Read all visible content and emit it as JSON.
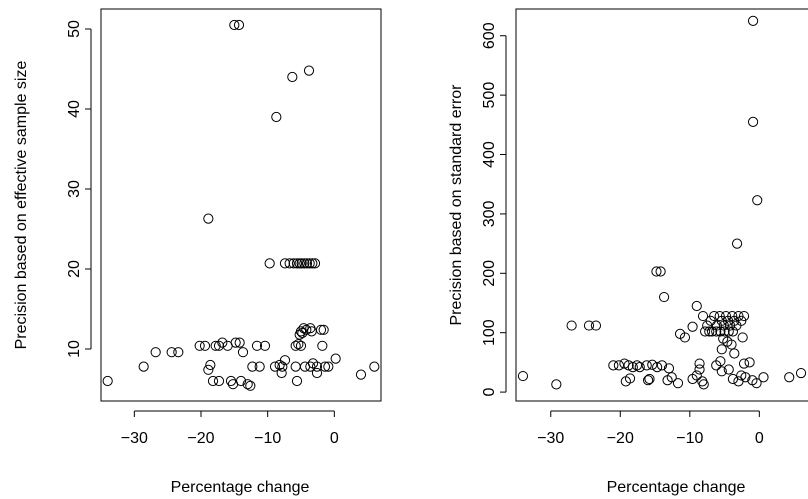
{
  "chart_data": [
    {
      "type": "scatter",
      "xlabel": "Percentage change",
      "ylabel": "Precision based on effective sample size",
      "xlim": [
        -35,
        7
      ],
      "ylim": [
        3.5,
        52.5
      ],
      "xticks": [
        -30,
        -20,
        -10,
        0
      ],
      "yticks": [
        10,
        20,
        30,
        40,
        50
      ],
      "points": [
        {
          "x": -15.0,
          "y": 50.5
        },
        {
          "x": -14.3,
          "y": 50.5
        },
        {
          "x": -3.8,
          "y": 44.8
        },
        {
          "x": -6.3,
          "y": 44.0
        },
        {
          "x": -8.7,
          "y": 39.0
        },
        {
          "x": -18.9,
          "y": 26.3
        },
        {
          "x": -9.7,
          "y": 20.7
        },
        {
          "x": -7.4,
          "y": 20.7
        },
        {
          "x": -6.7,
          "y": 20.7
        },
        {
          "x": -6.1,
          "y": 20.7
        },
        {
          "x": -5.6,
          "y": 20.7
        },
        {
          "x": -5.2,
          "y": 20.7
        },
        {
          "x": -4.9,
          "y": 20.7
        },
        {
          "x": -4.5,
          "y": 20.7
        },
        {
          "x": -4.1,
          "y": 20.7
        },
        {
          "x": -3.7,
          "y": 20.7
        },
        {
          "x": -3.3,
          "y": 20.7
        },
        {
          "x": -2.9,
          "y": 20.7
        },
        {
          "x": -34.0,
          "y": 6.0
        },
        {
          "x": -28.6,
          "y": 7.8
        },
        {
          "x": -26.8,
          "y": 9.6
        },
        {
          "x": -24.4,
          "y": 9.6
        },
        {
          "x": -23.4,
          "y": 9.6
        },
        {
          "x": -20.2,
          "y": 10.4
        },
        {
          "x": -19.4,
          "y": 10.4
        },
        {
          "x": -18.6,
          "y": 8.0
        },
        {
          "x": -18.9,
          "y": 7.4
        },
        {
          "x": -17.8,
          "y": 10.4
        },
        {
          "x": -17.3,
          "y": 10.4
        },
        {
          "x": -16.8,
          "y": 10.8
        },
        {
          "x": -18.2,
          "y": 6.0
        },
        {
          "x": -17.3,
          "y": 6.0
        },
        {
          "x": -16.0,
          "y": 10.4
        },
        {
          "x": -15.5,
          "y": 6.0
        },
        {
          "x": -15.2,
          "y": 5.6
        },
        {
          "x": -14.8,
          "y": 10.8
        },
        {
          "x": -14.2,
          "y": 10.8
        },
        {
          "x": -13.7,
          "y": 9.6
        },
        {
          "x": -14.0,
          "y": 6.0
        },
        {
          "x": -13.0,
          "y": 5.6
        },
        {
          "x": -12.6,
          "y": 5.4
        },
        {
          "x": -11.6,
          "y": 10.4
        },
        {
          "x": -10.4,
          "y": 10.4
        },
        {
          "x": -12.3,
          "y": 7.8
        },
        {
          "x": -11.2,
          "y": 7.8
        },
        {
          "x": -8.9,
          "y": 7.8
        },
        {
          "x": -8.2,
          "y": 8.0
        },
        {
          "x": -7.9,
          "y": 7.0
        },
        {
          "x": -7.8,
          "y": 7.8
        },
        {
          "x": -7.4,
          "y": 8.6
        },
        {
          "x": -5.8,
          "y": 10.4
        },
        {
          "x": -5.4,
          "y": 10.6
        },
        {
          "x": -5.2,
          "y": 11.8
        },
        {
          "x": -5.0,
          "y": 12.2
        },
        {
          "x": -4.8,
          "y": 12.0
        },
        {
          "x": -4.6,
          "y": 12.6
        },
        {
          "x": -4.2,
          "y": 12.4
        },
        {
          "x": -3.6,
          "y": 12.6
        },
        {
          "x": -3.4,
          "y": 12.2
        },
        {
          "x": -5.0,
          "y": 10.4
        },
        {
          "x": -5.8,
          "y": 7.8
        },
        {
          "x": -5.6,
          "y": 6.0
        },
        {
          "x": -4.4,
          "y": 7.8
        },
        {
          "x": -3.6,
          "y": 7.8
        },
        {
          "x": -3.2,
          "y": 8.2
        },
        {
          "x": -2.6,
          "y": 7.8
        },
        {
          "x": -2.6,
          "y": 7.0
        },
        {
          "x": -1.8,
          "y": 10.4
        },
        {
          "x": -2.0,
          "y": 12.4
        },
        {
          "x": -1.6,
          "y": 12.4
        },
        {
          "x": -1.4,
          "y": 7.8
        },
        {
          "x": -0.9,
          "y": 7.8
        },
        {
          "x": 0.2,
          "y": 8.8
        },
        {
          "x": 4.0,
          "y": 6.8
        },
        {
          "x": 6.0,
          "y": 7.8
        }
      ]
    },
    {
      "type": "scatter",
      "xlabel": "Percentage change",
      "ylabel": "Precision based on standard error",
      "xlim": [
        -35,
        7
      ],
      "ylim": [
        -15,
        645
      ],
      "xticks": [
        -30,
        -20,
        -10,
        0
      ],
      "yticks": [
        0,
        100,
        200,
        300,
        400,
        500,
        600
      ],
      "points": [
        {
          "x": -0.9,
          "y": 625
        },
        {
          "x": -0.9,
          "y": 455
        },
        {
          "x": -0.3,
          "y": 323
        },
        {
          "x": -3.2,
          "y": 250
        },
        {
          "x": -14.8,
          "y": 203
        },
        {
          "x": -14.2,
          "y": 203
        },
        {
          "x": -13.7,
          "y": 160
        },
        {
          "x": -9.0,
          "y": 145
        },
        {
          "x": -27.0,
          "y": 112
        },
        {
          "x": -24.5,
          "y": 112
        },
        {
          "x": -23.5,
          "y": 112
        },
        {
          "x": -11.4,
          "y": 98
        },
        {
          "x": -10.7,
          "y": 92
        },
        {
          "x": -9.6,
          "y": 110
        },
        {
          "x": -8.1,
          "y": 128
        },
        {
          "x": -7.5,
          "y": 112
        },
        {
          "x": -7.0,
          "y": 120
        },
        {
          "x": -6.5,
          "y": 128
        },
        {
          "x": -6.1,
          "y": 112
        },
        {
          "x": -5.7,
          "y": 128
        },
        {
          "x": -5.4,
          "y": 120
        },
        {
          "x": -5.1,
          "y": 112
        },
        {
          "x": -4.8,
          "y": 128
        },
        {
          "x": -4.5,
          "y": 120
        },
        {
          "x": -4.2,
          "y": 112
        },
        {
          "x": -3.9,
          "y": 128
        },
        {
          "x": -3.6,
          "y": 120
        },
        {
          "x": -3.3,
          "y": 112
        },
        {
          "x": -3.0,
          "y": 128
        },
        {
          "x": -2.6,
          "y": 120
        },
        {
          "x": -2.2,
          "y": 128
        },
        {
          "x": -7.8,
          "y": 102
        },
        {
          "x": -7.2,
          "y": 102
        },
        {
          "x": -6.8,
          "y": 102
        },
        {
          "x": -6.2,
          "y": 102
        },
        {
          "x": -5.6,
          "y": 102
        },
        {
          "x": -5.0,
          "y": 102
        },
        {
          "x": -4.4,
          "y": 102
        },
        {
          "x": -3.8,
          "y": 102
        },
        {
          "x": -5.2,
          "y": 90
        },
        {
          "x": -4.6,
          "y": 85
        },
        {
          "x": -4.0,
          "y": 80
        },
        {
          "x": -5.4,
          "y": 72
        },
        {
          "x": -3.6,
          "y": 65
        },
        {
          "x": -2.4,
          "y": 92
        },
        {
          "x": -34.0,
          "y": 27
        },
        {
          "x": -29.2,
          "y": 13
        },
        {
          "x": -21.0,
          "y": 45
        },
        {
          "x": -20.2,
          "y": 45
        },
        {
          "x": -19.4,
          "y": 48
        },
        {
          "x": -18.8,
          "y": 45
        },
        {
          "x": -18.2,
          "y": 42
        },
        {
          "x": -17.6,
          "y": 45
        },
        {
          "x": -17.2,
          "y": 42
        },
        {
          "x": -16.2,
          "y": 45
        },
        {
          "x": -19.2,
          "y": 18
        },
        {
          "x": -18.6,
          "y": 23
        },
        {
          "x": -15.4,
          "y": 46
        },
        {
          "x": -14.7,
          "y": 42
        },
        {
          "x": -14.0,
          "y": 45
        },
        {
          "x": -16.0,
          "y": 20
        },
        {
          "x": -15.8,
          "y": 22
        },
        {
          "x": -13.2,
          "y": 20
        },
        {
          "x": -12.6,
          "y": 25
        },
        {
          "x": -13.0,
          "y": 40
        },
        {
          "x": -11.7,
          "y": 15
        },
        {
          "x": -9.6,
          "y": 22
        },
        {
          "x": -9.0,
          "y": 28
        },
        {
          "x": -8.6,
          "y": 38
        },
        {
          "x": -8.6,
          "y": 48
        },
        {
          "x": -8.2,
          "y": 18
        },
        {
          "x": -8.0,
          "y": 13
        },
        {
          "x": -6.2,
          "y": 45
        },
        {
          "x": -5.6,
          "y": 52
        },
        {
          "x": -5.4,
          "y": 35
        },
        {
          "x": -4.4,
          "y": 38
        },
        {
          "x": -3.8,
          "y": 22
        },
        {
          "x": -3.0,
          "y": 18
        },
        {
          "x": -2.6,
          "y": 28
        },
        {
          "x": -2.2,
          "y": 48
        },
        {
          "x": -2.0,
          "y": 25
        },
        {
          "x": -1.4,
          "y": 50
        },
        {
          "x": -1.0,
          "y": 20
        },
        {
          "x": -0.4,
          "y": 15
        },
        {
          "x": 0.6,
          "y": 25
        },
        {
          "x": 4.3,
          "y": 25
        },
        {
          "x": 6.0,
          "y": 32
        }
      ]
    }
  ]
}
